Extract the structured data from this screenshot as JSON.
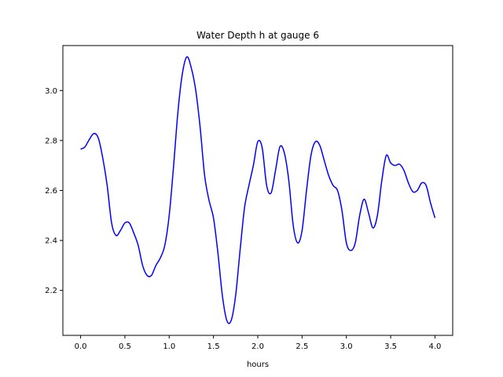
{
  "chart_data": {
    "type": "line",
    "title": "Water Depth h at gauge 6",
    "xlabel": "hours",
    "ylabel": "",
    "xlim": [
      -0.2,
      4.2
    ],
    "ylim": [
      2.02,
      3.18
    ],
    "grid": false,
    "xticks": [
      0.0,
      0.5,
      1.0,
      1.5,
      2.0,
      2.5,
      3.0,
      3.5,
      4.0
    ],
    "xtick_labels": [
      "0.0",
      "0.5",
      "1.0",
      "1.5",
      "2.0",
      "2.5",
      "3.0",
      "3.5",
      "4.0"
    ],
    "yticks": [
      2.2,
      2.4,
      2.6,
      2.8,
      3.0
    ],
    "ytick_labels": [
      "2.2",
      "2.4",
      "2.6",
      "2.8",
      "3.0"
    ],
    "series": [
      {
        "color": "#0000ff",
        "x": [
          0.0,
          0.05,
          0.1,
          0.15,
          0.2,
          0.25,
          0.3,
          0.35,
          0.4,
          0.45,
          0.5,
          0.55,
          0.6,
          0.65,
          0.7,
          0.75,
          0.8,
          0.85,
          0.9,
          0.95,
          1.0,
          1.05,
          1.1,
          1.15,
          1.2,
          1.25,
          1.3,
          1.35,
          1.4,
          1.45,
          1.5,
          1.55,
          1.6,
          1.65,
          1.7,
          1.75,
          1.8,
          1.85,
          1.9,
          1.95,
          2.0,
          2.05,
          2.1,
          2.15,
          2.2,
          2.25,
          2.3,
          2.35,
          2.4,
          2.45,
          2.5,
          2.55,
          2.6,
          2.65,
          2.7,
          2.75,
          2.8,
          2.85,
          2.9,
          2.95,
          3.0,
          3.05,
          3.1,
          3.15,
          3.2,
          3.25,
          3.3,
          3.35,
          3.4,
          3.45,
          3.5,
          3.55,
          3.6,
          3.65,
          3.7,
          3.75,
          3.8,
          3.85,
          3.9,
          3.95,
          4.0
        ],
        "values": [
          2.765,
          2.775,
          2.805,
          2.828,
          2.81,
          2.73,
          2.62,
          2.47,
          2.42,
          2.44,
          2.47,
          2.47,
          2.43,
          2.38,
          2.3,
          2.26,
          2.26,
          2.3,
          2.33,
          2.38,
          2.5,
          2.7,
          2.92,
          3.07,
          3.135,
          3.09,
          3.0,
          2.85,
          2.66,
          2.56,
          2.49,
          2.35,
          2.18,
          2.08,
          2.08,
          2.18,
          2.36,
          2.53,
          2.62,
          2.7,
          2.795,
          2.77,
          2.62,
          2.59,
          2.68,
          2.775,
          2.75,
          2.64,
          2.46,
          2.39,
          2.44,
          2.6,
          2.74,
          2.795,
          2.78,
          2.72,
          2.66,
          2.62,
          2.6,
          2.52,
          2.39,
          2.36,
          2.39,
          2.5,
          2.565,
          2.51,
          2.45,
          2.5,
          2.64,
          2.74,
          2.71,
          2.7,
          2.705,
          2.68,
          2.63,
          2.595,
          2.6,
          2.63,
          2.62,
          2.55,
          2.49
        ]
      }
    ]
  }
}
